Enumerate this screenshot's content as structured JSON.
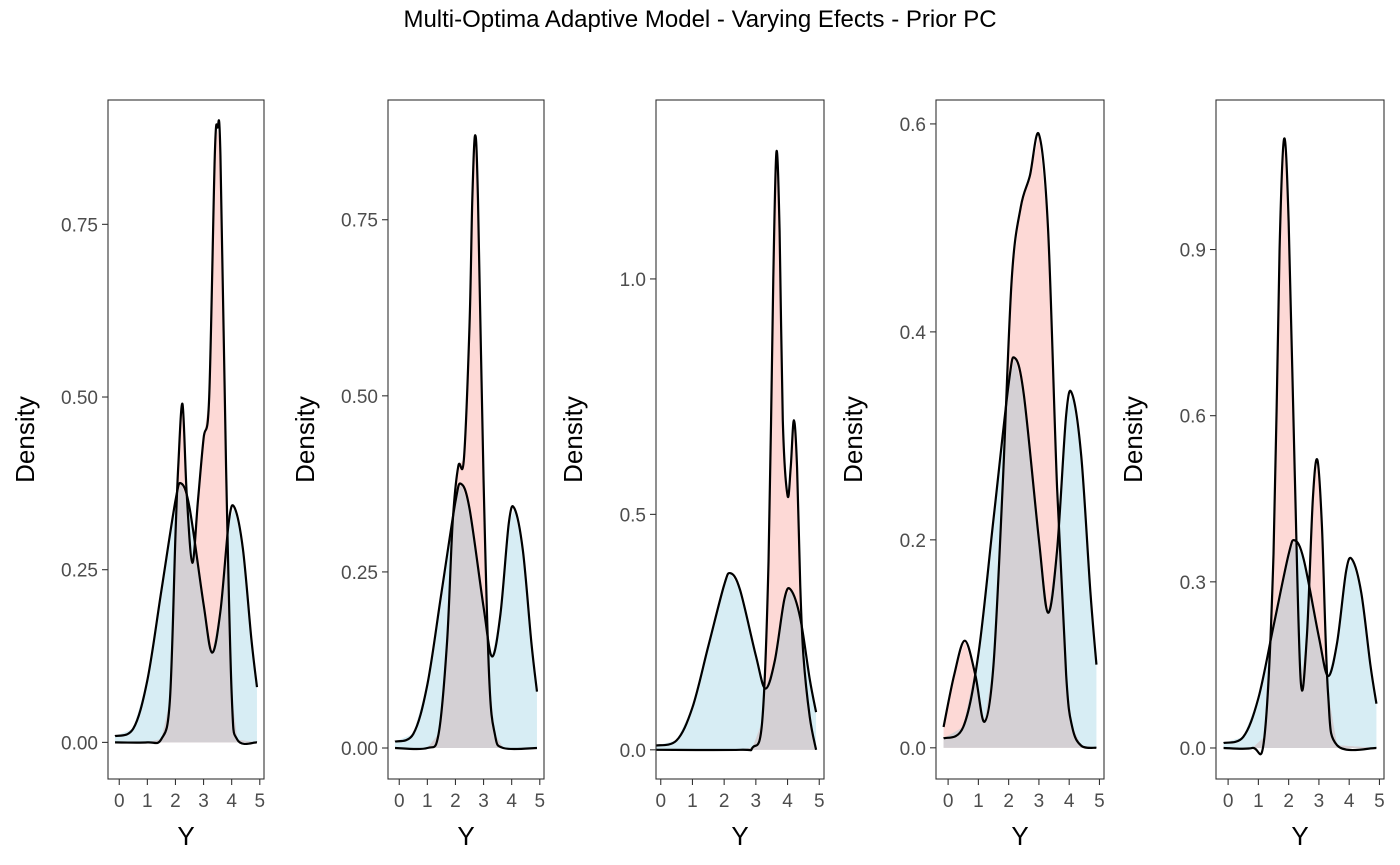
{
  "title": "Multi-Optima Adaptive Model - Varying Efects - Prior PC",
  "colors": {
    "fill_a": "#f8766d",
    "fill_b": "#a6d8e6",
    "fill_overlap": "#d4d0d4",
    "line": "#000000",
    "frame": "#333333"
  },
  "chart_data": [
    {
      "type": "area",
      "panel": 1,
      "xlabel": "Y",
      "ylabel": "Density",
      "xlim": [
        -0.4,
        5.15
      ],
      "ylim": [
        -0.053,
        0.93
      ],
      "xticks": [
        0,
        1,
        2,
        3,
        4,
        5
      ],
      "yticks": [
        0,
        0.25,
        0.5,
        0.75
      ],
      "ytick_labels": [
        "0.00",
        "0.25",
        "0.50",
        "0.75"
      ],
      "series": [
        {
          "fill": "blue",
          "x": [
            -0.15,
            0.5,
            1.0,
            1.5,
            2.0,
            2.2,
            2.5,
            3.0,
            3.3,
            3.6,
            3.9,
            4.1,
            4.4,
            4.7,
            4.9
          ],
          "y": [
            0.009,
            0.02,
            0.09,
            0.22,
            0.35,
            0.375,
            0.34,
            0.2,
            0.13,
            0.19,
            0.32,
            0.34,
            0.28,
            0.15,
            0.08
          ]
        },
        {
          "fill": "red",
          "x": [
            -0.15,
            1.0,
            1.5,
            1.8,
            2.0,
            2.1,
            2.25,
            2.4,
            2.6,
            2.8,
            3.0,
            3.2,
            3.4,
            3.5,
            3.6,
            3.8,
            4.0,
            4.2,
            4.9
          ],
          "y": [
            0.0,
            0.0,
            0.005,
            0.06,
            0.3,
            0.4,
            0.49,
            0.36,
            0.26,
            0.35,
            0.44,
            0.5,
            0.85,
            0.89,
            0.85,
            0.4,
            0.07,
            0.004,
            0.0
          ]
        }
      ]
    },
    {
      "type": "area",
      "panel": 2,
      "xlabel": "Y",
      "ylabel": "Density",
      "xlim": [
        -0.4,
        5.15
      ],
      "ylim": [
        -0.044,
        0.92
      ],
      "xticks": [
        0,
        1,
        2,
        3,
        4,
        5
      ],
      "yticks": [
        0,
        0.25,
        0.5,
        0.75
      ],
      "ytick_labels": [
        "0.00",
        "0.25",
        "0.50",
        "0.75"
      ],
      "series": [
        {
          "fill": "blue",
          "x": [
            -0.15,
            0.5,
            1.0,
            1.5,
            2.0,
            2.2,
            2.5,
            3.0,
            3.3,
            3.6,
            3.9,
            4.1,
            4.4,
            4.7,
            4.9
          ],
          "y": [
            0.009,
            0.02,
            0.09,
            0.22,
            0.35,
            0.375,
            0.34,
            0.2,
            0.13,
            0.19,
            0.32,
            0.34,
            0.28,
            0.15,
            0.08
          ]
        },
        {
          "fill": "red",
          "x": [
            -0.15,
            1.0,
            1.4,
            1.7,
            1.9,
            2.1,
            2.3,
            2.5,
            2.6,
            2.7,
            2.8,
            3.0,
            3.2,
            3.4,
            3.7,
            4.9
          ],
          "y": [
            0.0,
            0.0,
            0.02,
            0.15,
            0.32,
            0.4,
            0.41,
            0.6,
            0.78,
            0.87,
            0.78,
            0.38,
            0.1,
            0.02,
            0.0,
            0.0
          ]
        }
      ]
    },
    {
      "type": "area",
      "panel": 3,
      "xlabel": "Y",
      "ylabel": "Density",
      "xlim": [
        -0.15,
        5.15
      ],
      "ylim": [
        -0.062,
        1.38
      ],
      "xticks": [
        0,
        1,
        2,
        3,
        4,
        5
      ],
      "yticks": [
        0,
        0.5,
        1.0
      ],
      "ytick_labels": [
        "0.0",
        "0.5",
        "1.0"
      ],
      "series": [
        {
          "fill": "blue",
          "x": [
            -0.15,
            0.5,
            1.0,
            1.5,
            2.0,
            2.2,
            2.5,
            3.0,
            3.3,
            3.6,
            3.9,
            4.1,
            4.4,
            4.7,
            4.9
          ],
          "y": [
            0.009,
            0.02,
            0.09,
            0.22,
            0.35,
            0.375,
            0.34,
            0.2,
            0.13,
            0.19,
            0.32,
            0.34,
            0.28,
            0.15,
            0.08
          ]
        },
        {
          "fill": "red",
          "x": [
            -0.15,
            2.5,
            2.9,
            3.2,
            3.4,
            3.55,
            3.65,
            3.75,
            3.85,
            4.0,
            4.1,
            4.2,
            4.3,
            4.4,
            4.5,
            4.7,
            4.9
          ],
          "y": [
            0.0,
            0.0,
            0.005,
            0.06,
            0.4,
            1.0,
            1.27,
            1.1,
            0.7,
            0.54,
            0.6,
            0.7,
            0.6,
            0.35,
            0.2,
            0.07,
            0.0
          ]
        }
      ]
    },
    {
      "type": "area",
      "panel": 4,
      "xlabel": "Y",
      "ylabel": "Density",
      "xlim": [
        -0.4,
        5.15
      ],
      "ylim": [
        -0.03,
        0.623
      ],
      "xticks": [
        0,
        1,
        2,
        3,
        4,
        5
      ],
      "yticks": [
        0,
        0.2,
        0.4,
        0.6
      ],
      "ytick_labels": [
        "0.0",
        "0.2",
        "0.4",
        "0.6"
      ],
      "series": [
        {
          "fill": "blue",
          "x": [
            -0.15,
            0.5,
            1.0,
            1.5,
            2.0,
            2.2,
            2.5,
            3.0,
            3.3,
            3.6,
            3.9,
            4.1,
            4.4,
            4.7,
            4.9
          ],
          "y": [
            0.009,
            0.02,
            0.09,
            0.22,
            0.35,
            0.375,
            0.34,
            0.2,
            0.13,
            0.19,
            0.32,
            0.34,
            0.28,
            0.15,
            0.08
          ]
        },
        {
          "fill": "red",
          "x": [
            -0.15,
            0.2,
            0.55,
            0.9,
            1.2,
            1.5,
            1.8,
            2.1,
            2.4,
            2.7,
            3.0,
            3.3,
            3.6,
            3.9,
            4.1,
            4.4,
            4.9
          ],
          "y": [
            0.02,
            0.07,
            0.103,
            0.07,
            0.025,
            0.08,
            0.25,
            0.45,
            0.52,
            0.55,
            0.59,
            0.5,
            0.25,
            0.07,
            0.02,
            0.002,
            0.0
          ]
        }
      ]
    },
    {
      "type": "area",
      "panel": 5,
      "xlabel": "Y",
      "ylabel": "Density",
      "xlim": [
        -0.4,
        5.15
      ],
      "ylim": [
        -0.056,
        1.17
      ],
      "xticks": [
        0,
        1,
        2,
        3,
        4,
        5
      ],
      "yticks": [
        0,
        0.3,
        0.6,
        0.9
      ],
      "ytick_labels": [
        "0.0",
        "0.3",
        "0.6",
        "0.9"
      ],
      "series": [
        {
          "fill": "blue",
          "x": [
            -0.15,
            0.5,
            1.0,
            1.5,
            2.0,
            2.2,
            2.5,
            3.0,
            3.3,
            3.6,
            3.9,
            4.1,
            4.4,
            4.7,
            4.9
          ],
          "y": [
            0.009,
            0.02,
            0.09,
            0.22,
            0.35,
            0.375,
            0.34,
            0.2,
            0.13,
            0.19,
            0.32,
            0.34,
            0.28,
            0.15,
            0.08
          ]
        },
        {
          "fill": "red",
          "x": [
            -0.15,
            0.8,
            1.2,
            1.5,
            1.7,
            1.85,
            2.0,
            2.2,
            2.4,
            2.6,
            2.8,
            2.95,
            3.1,
            3.3,
            3.6,
            4.9
          ],
          "y": [
            0.0,
            0.0,
            0.02,
            0.35,
            0.9,
            1.1,
            0.95,
            0.5,
            0.12,
            0.2,
            0.45,
            0.52,
            0.4,
            0.1,
            0.005,
            0.0
          ]
        }
      ]
    }
  ]
}
